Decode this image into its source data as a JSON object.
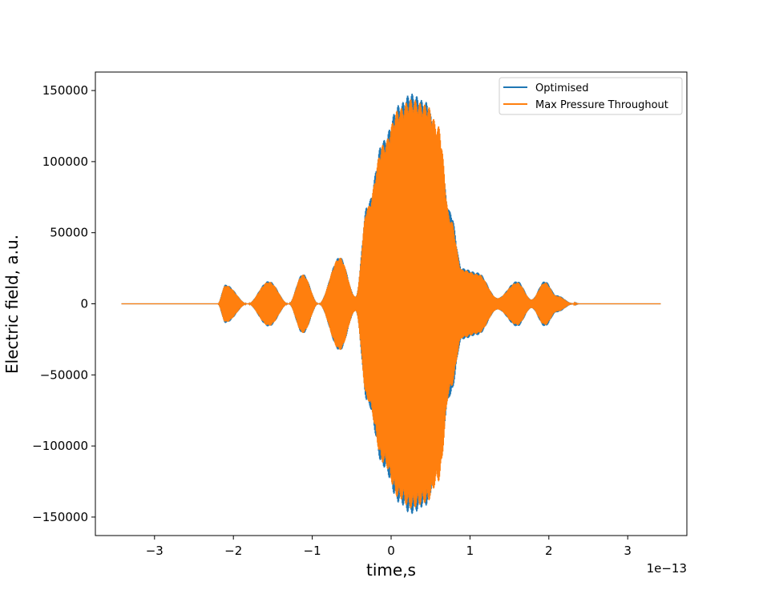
{
  "chart_data": {
    "type": "line",
    "xlabel": "time,s",
    "ylabel": "Electric field, a.u.",
    "x_offset_label": "1e−13",
    "x_scale": 1e-13,
    "xlim": [
      -3.75,
      3.75
    ],
    "ylim": [
      -163000,
      163000
    ],
    "xticks": [
      -3,
      -2,
      -1,
      0,
      1,
      2,
      3
    ],
    "xtick_labels": [
      "−3",
      "−2",
      "−1",
      "0",
      "1",
      "2",
      "3"
    ],
    "yticks": [
      -150000,
      -100000,
      -50000,
      0,
      50000,
      100000,
      150000
    ],
    "ytick_labels": [
      "−150000",
      "−100000",
      "−50000",
      "0",
      "50000",
      "100000",
      "150000"
    ],
    "grid": false,
    "legend_position": "top-right",
    "series": [
      {
        "name": "Optimised",
        "color": "#1f77b4",
        "envelope": {
          "x": [
            -3.42,
            -2.2,
            -2.1,
            -1.82,
            -1.55,
            -1.3,
            -1.12,
            -0.92,
            -0.65,
            -0.45,
            -0.3,
            -0.1,
            0.1,
            0.25,
            0.45,
            0.6,
            0.75,
            0.9,
            1.1,
            1.35,
            1.6,
            1.78,
            1.95,
            2.1,
            2.3,
            2.4,
            3.42
          ],
          "y": [
            0,
            0,
            13500,
            0,
            16000,
            0,
            21000,
            0,
            33000,
            5000,
            70000,
            115000,
            140000,
            148000,
            142000,
            110000,
            65000,
            25000,
            22000,
            4000,
            16000,
            3000,
            16000,
            6000,
            500,
            0,
            0
          ]
        }
      },
      {
        "name": "Max Pressure Throughout",
        "color": "#ff7f0e",
        "envelope": {
          "x": [
            -3.42,
            -2.2,
            -2.1,
            -1.82,
            -1.55,
            -1.3,
            -1.12,
            -0.92,
            -0.65,
            -0.45,
            -0.3,
            -0.1,
            0.1,
            0.25,
            0.45,
            0.6,
            0.75,
            0.9,
            1.1,
            1.35,
            1.6,
            1.78,
            1.95,
            2.1,
            2.3,
            2.4,
            3.42
          ],
          "y": [
            0,
            0,
            13000,
            0,
            15500,
            0,
            20500,
            0,
            32500,
            5000,
            68000,
            112000,
            137000,
            144000,
            140000,
            125000,
            60000,
            24000,
            21000,
            4000,
            15000,
            3000,
            15000,
            5500,
            400,
            0,
            0
          ]
        }
      }
    ]
  }
}
